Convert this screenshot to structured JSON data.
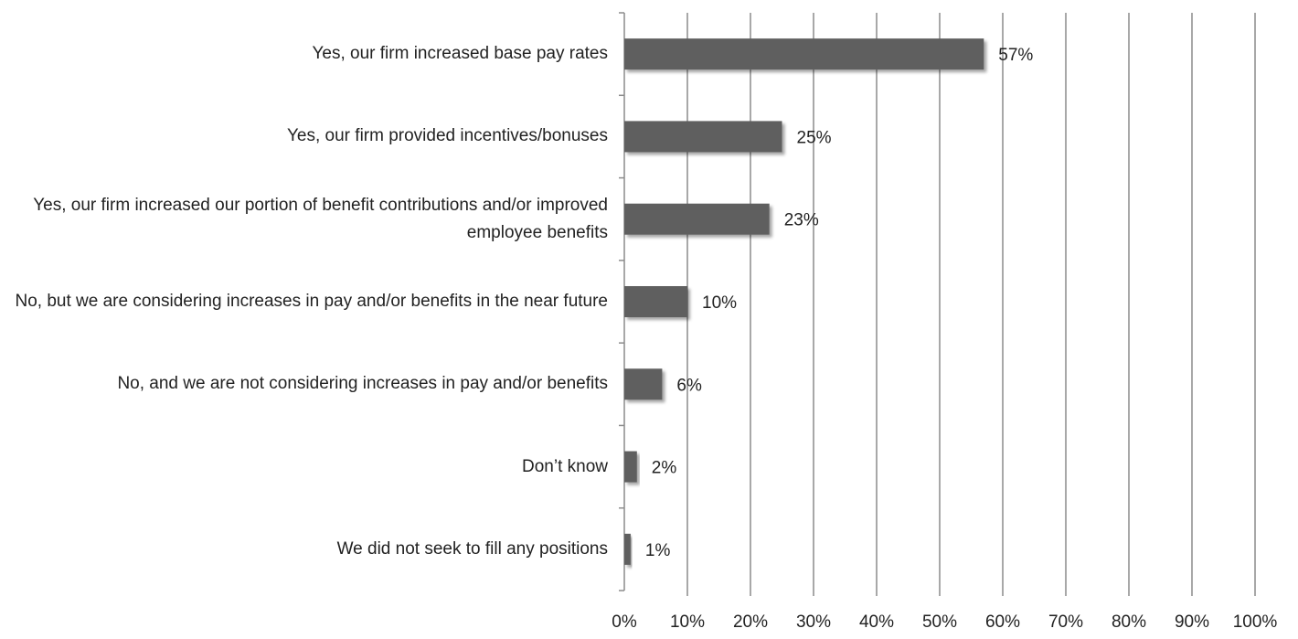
{
  "chart_data": {
    "type": "bar",
    "orientation": "horizontal",
    "categories": [
      "Yes, our firm increased base pay rates",
      "Yes, our firm provided incentives/bonuses",
      "Yes, our firm increased our portion of benefit contributions and/or improved employee benefits",
      "No, but we are considering increases in pay and/or benefits in the near future",
      "No, and we are not considering increases in pay and/or benefits",
      "Don’t know",
      "We did not seek to fill any positions"
    ],
    "values": [
      57,
      25,
      23,
      10,
      6,
      2,
      1
    ],
    "value_labels": [
      "57%",
      "25%",
      "23%",
      "10%",
      "6%",
      "2%",
      "1%"
    ],
    "xlim": [
      0,
      100
    ],
    "xticks": [
      "0%",
      "10%",
      "20%",
      "30%",
      "40%",
      "50%",
      "60%",
      "70%",
      "80%",
      "90%",
      "100%"
    ],
    "grid": "vertical",
    "bar_color": "#5f5f5f",
    "title": "",
    "xlabel": "",
    "ylabel": ""
  }
}
